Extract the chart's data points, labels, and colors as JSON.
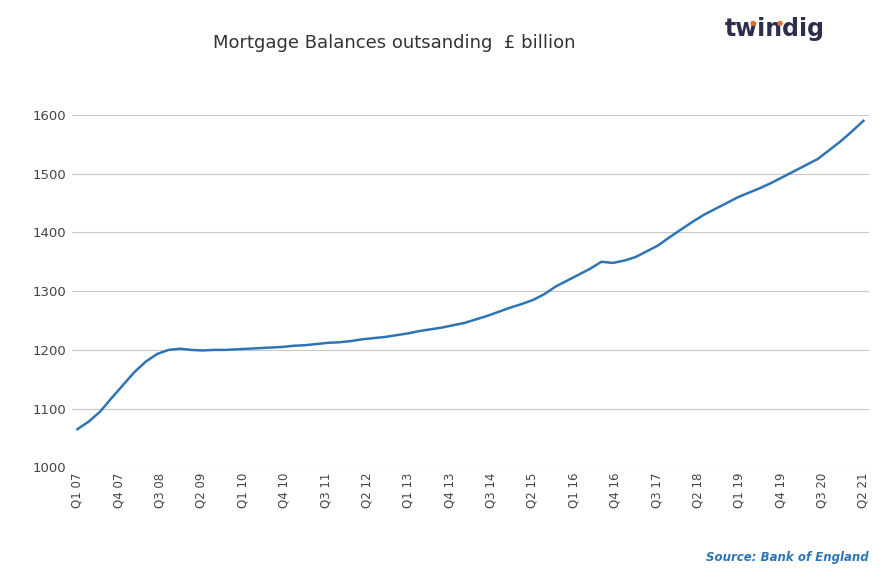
{
  "title": "Mortgage Balances outsanding  £ billion",
  "line_color": "#2E75B6",
  "background_color": "#ffffff",
  "plot_bg_color": "#ffffff",
  "grid_color": "#c8c8c8",
  "ylim": [
    1000,
    1650
  ],
  "yticks": [
    1000,
    1100,
    1200,
    1300,
    1400,
    1500,
    1600
  ],
  "source_text": "Source: Bank of England",
  "source_color": "#2E75B6",
  "twindig_color": "#2d2d4e",
  "twindig_dot_color": "#E8702A",
  "x_labels": [
    "Q1 07",
    "Q4 07",
    "Q3 08",
    "Q2 09",
    "Q1 10",
    "Q4 10",
    "Q3 11",
    "Q2 12",
    "Q1 13",
    "Q4 13",
    "Q3 14",
    "Q2 15",
    "Q1 16",
    "Q4 16",
    "Q3 17",
    "Q2 18",
    "Q1 19",
    "Q4 19",
    "Q3 20",
    "Q2 21"
  ],
  "values": [
    1065,
    1078,
    1095,
    1118,
    1140,
    1162,
    1180,
    1193,
    1200,
    1202,
    1200,
    1199,
    1200,
    1200,
    1201,
    1202,
    1203,
    1204,
    1205,
    1207,
    1208,
    1210,
    1212,
    1213,
    1215,
    1218,
    1220,
    1222,
    1225,
    1228,
    1232,
    1235,
    1238,
    1242,
    1246,
    1252,
    1258,
    1265,
    1272,
    1278,
    1285,
    1295,
    1308,
    1318,
    1328,
    1338,
    1350,
    1348,
    1352,
    1358,
    1368,
    1378,
    1392,
    1405,
    1418,
    1430,
    1440,
    1450,
    1460,
    1468,
    1476,
    1485,
    1495,
    1505,
    1515,
    1525,
    1540,
    1555,
    1572,
    1590
  ]
}
